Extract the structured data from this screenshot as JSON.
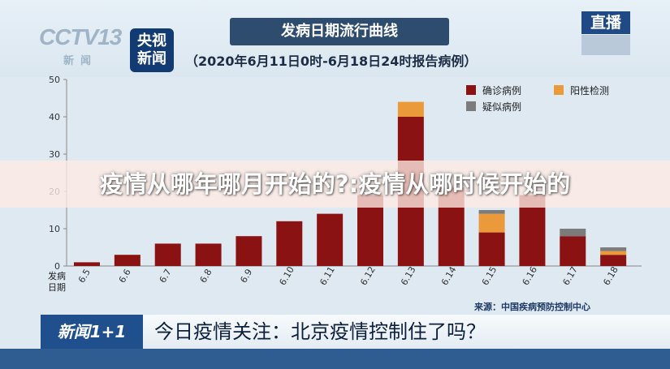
{
  "logo": {
    "cctv": "CCTV13",
    "cctv_sub": "新闻",
    "badge_line1": "央视",
    "badge_line2": "新闻"
  },
  "live_badge": "直播",
  "header": {
    "title": "发病日期流行曲线",
    "subtitle": "（2020年6月11日0时-6月18日24时报告病例）"
  },
  "watermark": "疫情从哪年哪月开始的?:疫情从哪时候开始的",
  "source": "来源：中国疾病预防控制中心",
  "ticker": {
    "tag": "新闻1+1",
    "message": "今日疫情关注：北京疫情控制住了吗？"
  },
  "colors": {
    "confirmed": "#8b1212",
    "positive": "#ea9a3a",
    "suspected": "#7c7c7c",
    "axis": "#888888"
  },
  "chart_data": {
    "type": "bar",
    "stacked": true,
    "xlabel": "发病日期",
    "ylim": [
      0,
      50
    ],
    "yticks": [
      0,
      10,
      20,
      30,
      40,
      50
    ],
    "categories": [
      "6.5",
      "6.6",
      "6.7",
      "6.8",
      "6.9",
      "6.10",
      "6.11",
      "6.12",
      "6.13",
      "6.14",
      "6.15",
      "6.16",
      "6.17",
      "6.18"
    ],
    "series": [
      {
        "name": "确诊病例",
        "values": [
          1,
          3,
          6,
          6,
          8,
          12,
          14,
          19,
          40,
          21,
          9,
          19,
          8,
          3
        ]
      },
      {
        "name": "阳性检测",
        "values": [
          0,
          0,
          0,
          0,
          0,
          0,
          0,
          0,
          4,
          0,
          5,
          0,
          0,
          1
        ]
      },
      {
        "name": "疑似病例",
        "values": [
          0,
          0,
          0,
          0,
          0,
          0,
          0,
          0,
          0,
          0,
          1,
          0,
          2,
          1
        ]
      }
    ],
    "grid": false,
    "legend": "top-right"
  }
}
